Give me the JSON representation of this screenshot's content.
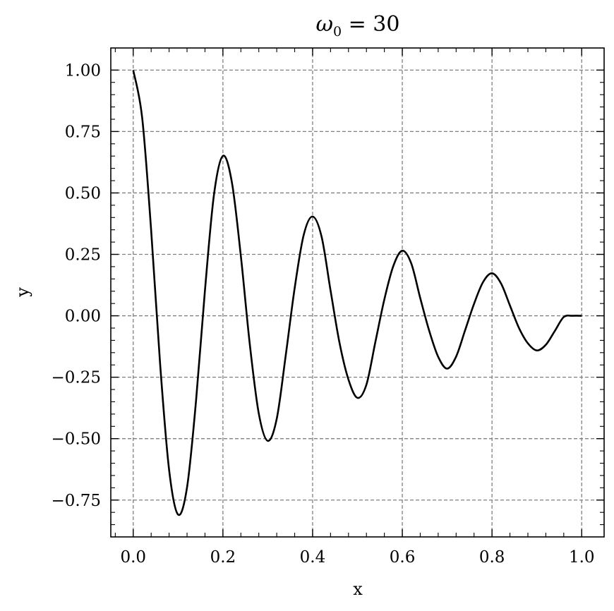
{
  "chart_data": {
    "type": "line",
    "title": {
      "symbol": "ω",
      "subscript": "0",
      "rest": " = 30"
    },
    "xlabel": "x",
    "ylabel": "y",
    "xlim": [
      -0.05,
      1.05
    ],
    "ylim": [
      -0.9,
      1.09
    ],
    "xticks": [
      0.0,
      0.2,
      0.4,
      0.6,
      0.8,
      1.0
    ],
    "xtick_labels": [
      "0.0",
      "0.2",
      "0.4",
      "0.6",
      "0.8",
      "1.0"
    ],
    "yticks": [
      1.0,
      0.75,
      0.5,
      0.25,
      0.0,
      -0.25,
      -0.5,
      -0.75
    ],
    "ytick_labels": [
      "1.00",
      "0.75",
      "0.50",
      "0.25",
      "0.00",
      "−0.25",
      "−0.50",
      "−0.75"
    ],
    "grid": true,
    "series": [
      {
        "color": "#000000",
        "x": [
          0.0,
          0.02,
          0.04,
          0.06,
          0.08,
          0.1,
          0.12,
          0.14,
          0.16,
          0.18,
          0.2,
          0.22,
          0.24,
          0.26,
          0.28,
          0.3,
          0.32,
          0.34,
          0.36,
          0.38,
          0.4,
          0.42,
          0.44,
          0.46,
          0.48,
          0.5,
          0.52,
          0.54,
          0.56,
          0.58,
          0.6,
          0.62,
          0.64,
          0.66,
          0.68,
          0.7,
          0.72,
          0.74,
          0.76,
          0.78,
          0.8,
          0.82,
          0.84,
          0.86,
          0.88,
          0.9,
          0.92,
          0.94,
          0.96,
          0.98,
          1.0
        ],
        "y": [
          1.0,
          0.805,
          0.347,
          -0.197,
          -0.627,
          -0.809,
          -0.698,
          -0.347,
          0.105,
          0.492,
          0.651,
          0.543,
          0.243,
          -0.117,
          -0.398,
          -0.509,
          -0.419,
          -0.162,
          0.113,
          0.328,
          0.404,
          0.322,
          0.103,
          -0.11,
          -0.26,
          -0.334,
          -0.28,
          -0.106,
          0.067,
          0.203,
          0.265,
          0.213,
          0.072,
          -0.061,
          -0.167,
          -0.215,
          -0.166,
          -0.059,
          0.049,
          0.137,
          0.173,
          0.132,
          0.042,
          -0.049,
          -0.112,
          -0.141,
          -0.118,
          -0.062,
          -0.005,
          0.0,
          0.0
        ]
      }
    ]
  }
}
